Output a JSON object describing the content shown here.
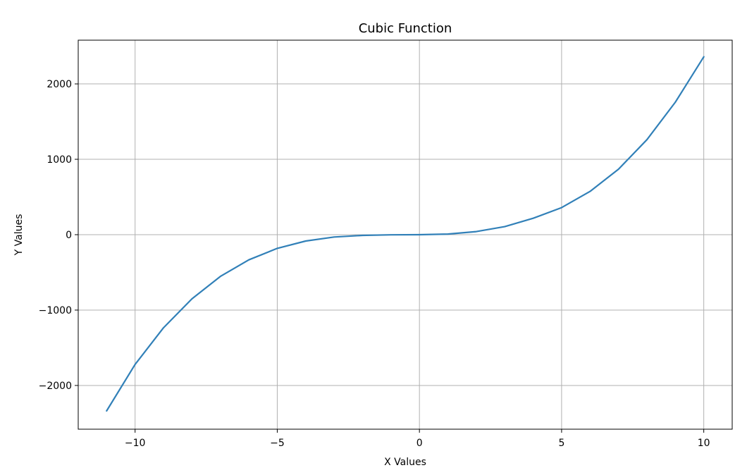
{
  "chart_data": {
    "type": "line",
    "title": "Cubic Function",
    "xlabel": "X Values",
    "ylabel": "Y Values",
    "xlim": [
      -12,
      11
    ],
    "ylim": [
      -2580,
      2580
    ],
    "xticks": [
      -10,
      -5,
      0,
      5,
      10
    ],
    "xtick_labels": [
      "−10",
      "−5",
      "0",
      "5",
      "10"
    ],
    "yticks": [
      -2000,
      -1000,
      0,
      1000,
      2000
    ],
    "ytick_labels": [
      "−2000",
      "−1000",
      "0",
      "1000",
      "2000"
    ],
    "grid": true,
    "series": [
      {
        "color": "#3180b8",
        "x": [
          -11,
          -10,
          -9,
          -8,
          -7,
          -6,
          -5,
          -4,
          -3,
          -2,
          -1,
          0,
          1,
          2,
          3,
          4,
          5,
          6,
          7,
          8,
          9,
          10
        ],
        "y": [
          -2337,
          -1721,
          -1235,
          -851,
          -553,
          -334,
          -181,
          -84,
          -31,
          -9,
          -2,
          0,
          8,
          41,
          107,
          218,
          359,
          574,
          868,
          1260,
          1757,
          2359
        ]
      }
    ]
  }
}
